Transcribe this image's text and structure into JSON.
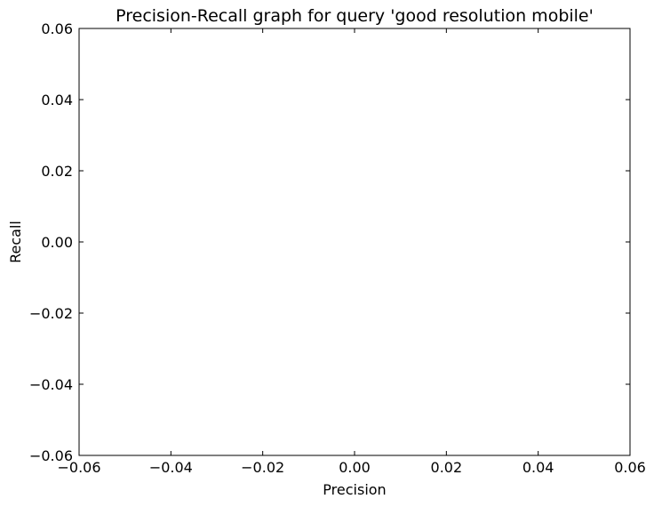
{
  "chart_data": {
    "type": "line",
    "title": "Precision-Recall graph for query 'good resolution mobile'",
    "xlabel": "Precision",
    "ylabel": "Recall",
    "xlim": [
      -0.06,
      0.06
    ],
    "ylim": [
      -0.06,
      0.06
    ],
    "x_ticks": [
      -0.06,
      -0.04,
      -0.02,
      0.0,
      0.02,
      0.04,
      0.06
    ],
    "y_ticks": [
      -0.06,
      -0.04,
      -0.02,
      0.0,
      0.02,
      0.04,
      0.06
    ],
    "x_tick_labels": [
      "−0.06",
      "−0.04",
      "−0.02",
      "0.00",
      "0.02",
      "0.04",
      "0.06"
    ],
    "y_tick_labels": [
      "−0.06",
      "−0.04",
      "−0.02",
      "0.00",
      "0.02",
      "0.04",
      "0.06"
    ],
    "grid": false,
    "series": [
      {
        "x": [],
        "y": []
      }
    ]
  },
  "colors": {
    "axes": "#000000",
    "background": "#ffffff"
  }
}
